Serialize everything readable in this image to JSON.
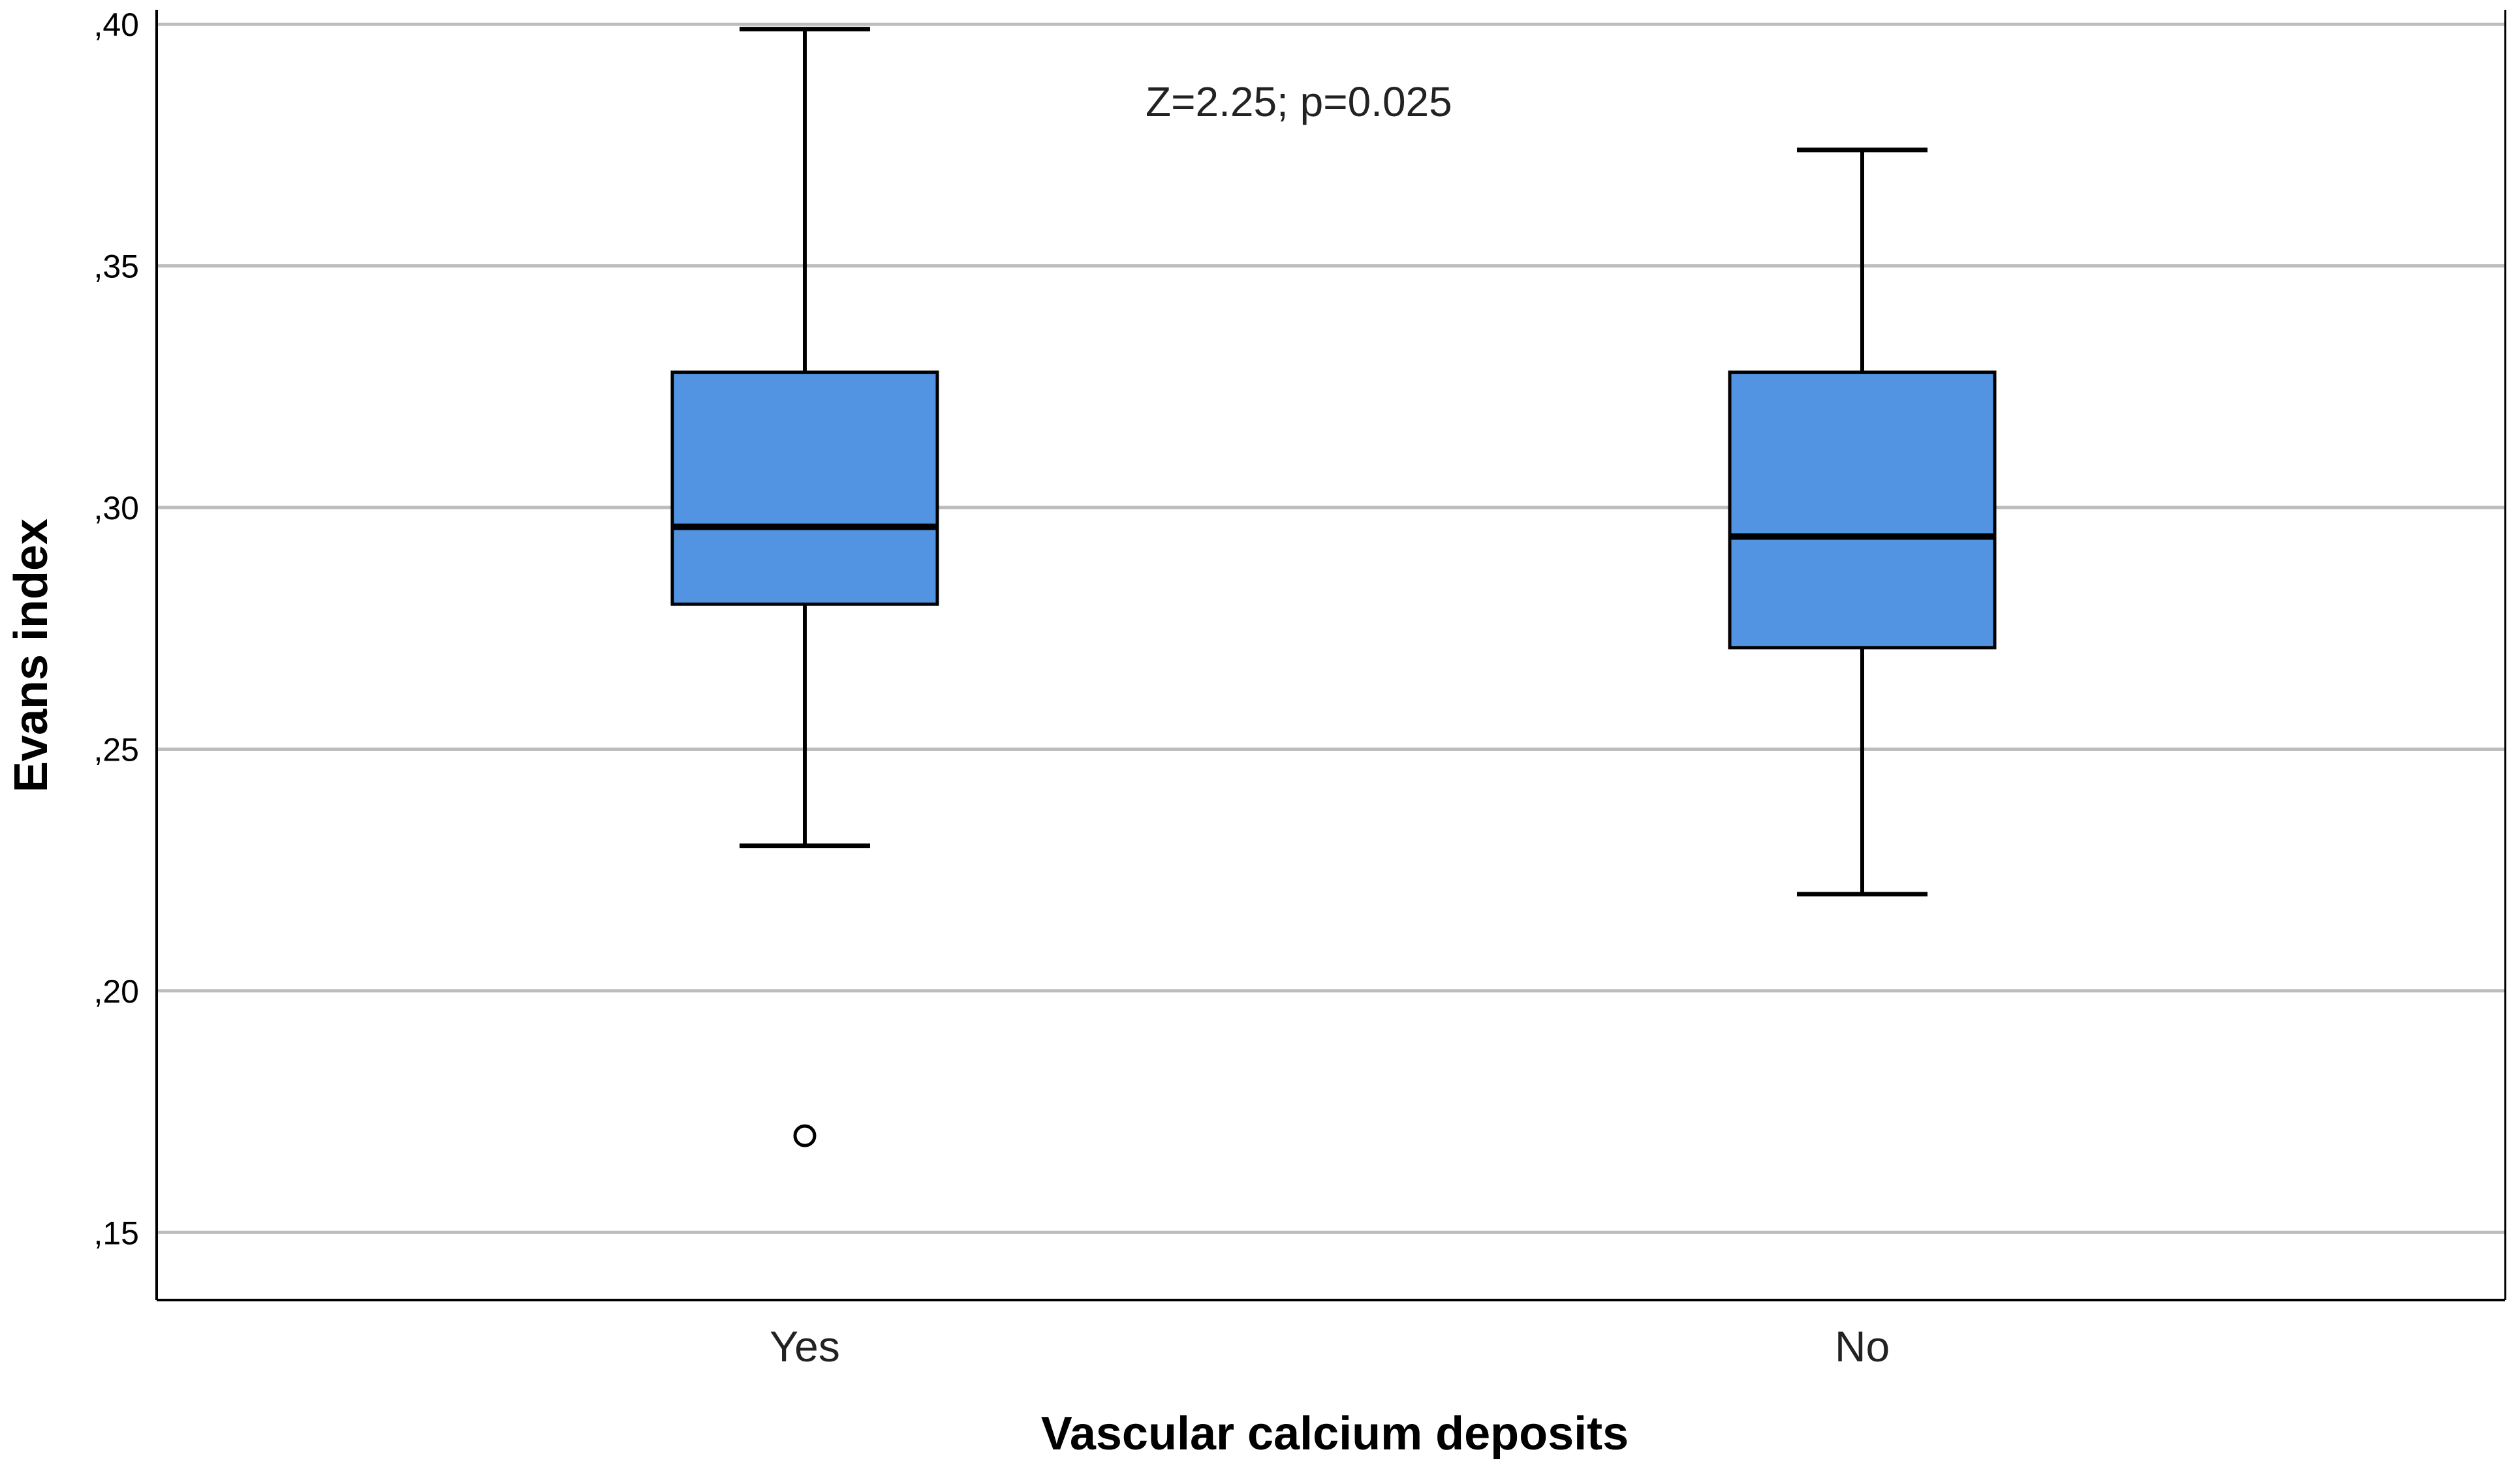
{
  "chart_data": {
    "type": "box",
    "title": "",
    "xlabel": "Vascular calcium deposits",
    "ylabel": "Evans index",
    "ylim": [
      0.136,
      0.403
    ],
    "yticks": [
      0.15,
      0.2,
      0.25,
      0.3,
      0.35,
      0.4
    ],
    "ytick_labels": [
      ",15",
      ",20",
      ",25",
      ",30",
      ",35",
      ",40"
    ],
    "grid": "horizontal",
    "annotation": "Z=2.25; p=0.025",
    "categories": [
      "Yes",
      "No"
    ],
    "boxes": [
      {
        "category": "Yes",
        "whisker_low": 0.23,
        "q1": 0.28,
        "median": 0.296,
        "q3": 0.328,
        "whisker_high": 0.399,
        "outliers": [
          0.17
        ]
      },
      {
        "category": "No",
        "whisker_low": 0.22,
        "q1": 0.271,
        "median": 0.294,
        "q3": 0.328,
        "whisker_high": 0.374,
        "outliers": []
      }
    ],
    "colors": {
      "box_fill": "#5294E2",
      "stroke": "#000000",
      "grid": "#BDBDBD",
      "axis": "#000000"
    }
  }
}
